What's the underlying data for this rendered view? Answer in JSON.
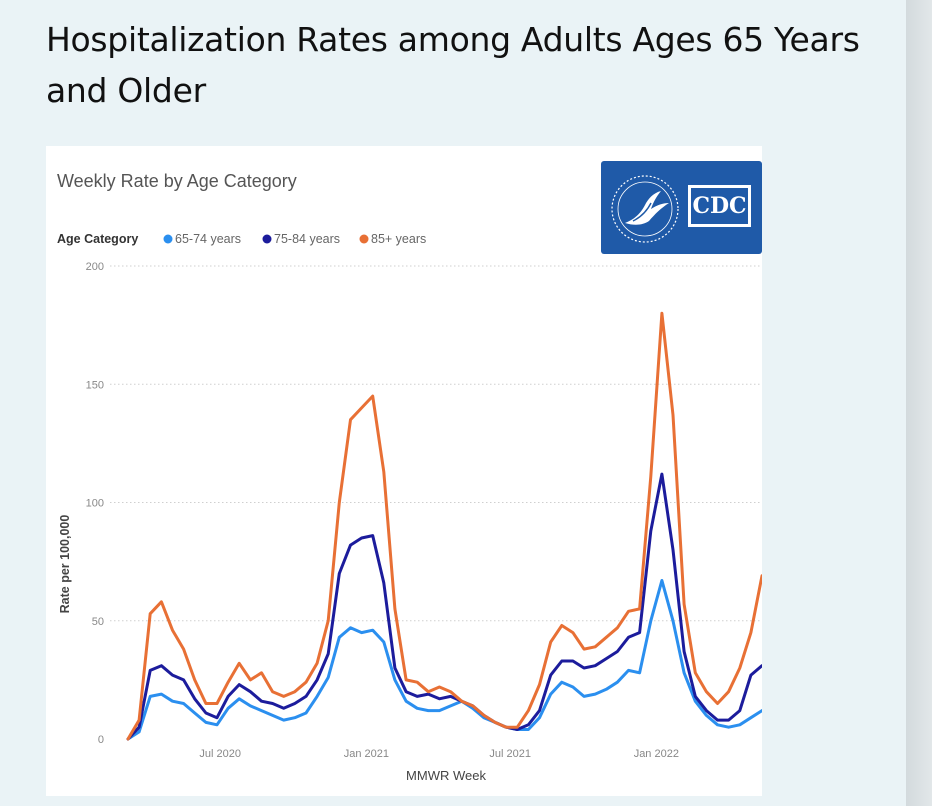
{
  "page": {
    "title": "Hospitalization Rates among Adults Ages 65 Years and Older"
  },
  "logo": {
    "text": "CDC",
    "icon": "hhs-eagle-icon",
    "color": "#1f5aa8"
  },
  "chart_data": {
    "type": "line",
    "title": "Weekly Rate by Age Category",
    "xlabel": "MMWR Week",
    "ylabel": "Rate per 100,000",
    "ylim": [
      0,
      200
    ],
    "yticks": [
      0,
      50,
      100,
      150,
      200
    ],
    "xticks": [
      "Jul 2020",
      "Jan 2021",
      "Jul 2021",
      "Jan 2022"
    ],
    "xtick_dates": [
      "2020-07-01",
      "2021-01-01",
      "2021-07-01",
      "2022-01-01"
    ],
    "grid": "horizontal-dotted",
    "legend": {
      "title": "Age Category",
      "placement": "top-left",
      "entries": [
        "65-74 years",
        "75-84 years",
        "85+ years"
      ]
    },
    "x": [
      "2020-03-07",
      "2020-03-21",
      "2020-04-04",
      "2020-04-18",
      "2020-05-02",
      "2020-05-16",
      "2020-05-30",
      "2020-06-13",
      "2020-06-27",
      "2020-07-11",
      "2020-07-25",
      "2020-08-08",
      "2020-08-22",
      "2020-09-05",
      "2020-09-19",
      "2020-10-03",
      "2020-10-17",
      "2020-10-31",
      "2020-11-14",
      "2020-11-28",
      "2020-12-12",
      "2020-12-26",
      "2021-01-09",
      "2021-01-23",
      "2021-02-06",
      "2021-02-20",
      "2021-03-06",
      "2021-03-20",
      "2021-04-03",
      "2021-04-17",
      "2021-05-01",
      "2021-05-15",
      "2021-05-29",
      "2021-06-12",
      "2021-06-26",
      "2021-07-10",
      "2021-07-24",
      "2021-08-07",
      "2021-08-21",
      "2021-09-04",
      "2021-09-18",
      "2021-10-02",
      "2021-10-16",
      "2021-10-30",
      "2021-11-13",
      "2021-11-27",
      "2021-12-11",
      "2021-12-25",
      "2022-01-08",
      "2022-01-22",
      "2022-02-05",
      "2022-02-19",
      "2022-03-05",
      "2022-03-19",
      "2022-04-02",
      "2022-04-16",
      "2022-04-30",
      "2022-05-14"
    ],
    "series": [
      {
        "name": "65-74 years",
        "color": "#2b8fef",
        "values": [
          0,
          3,
          18,
          19,
          16,
          15,
          11,
          7,
          6,
          13,
          17,
          14,
          12,
          10,
          8,
          9,
          11,
          18,
          26,
          43,
          47,
          45,
          46,
          41,
          25,
          16,
          13,
          12,
          12,
          14,
          16,
          13,
          9,
          7,
          5,
          4,
          4,
          9,
          19,
          24,
          22,
          18,
          19,
          21,
          24,
          29,
          28,
          50,
          67,
          50,
          28,
          16,
          10,
          6,
          5,
          6,
          9,
          12
        ],
        "values_note": ""
      },
      {
        "name": "75-84 years",
        "color": "#1c1c9c",
        "values": [
          0,
          5,
          29,
          31,
          27,
          25,
          17,
          11,
          9,
          18,
          23,
          20,
          16,
          15,
          13,
          15,
          18,
          25,
          36,
          70,
          82,
          85,
          86,
          66,
          30,
          20,
          18,
          19,
          17,
          18,
          16,
          14,
          10,
          7,
          5,
          4,
          6,
          12,
          27,
          33,
          33,
          30,
          31,
          34,
          37,
          43,
          45,
          88,
          112,
          80,
          37,
          18,
          12,
          8,
          8,
          12,
          27,
          31
        ]
      },
      {
        "name": "85+ years",
        "color": "#e87035",
        "values": [
          0,
          8,
          53,
          58,
          46,
          38,
          25,
          15,
          15,
          24,
          32,
          25,
          28,
          20,
          18,
          20,
          24,
          32,
          50,
          100,
          135,
          140,
          145,
          113,
          55,
          25,
          24,
          20,
          22,
          20,
          16,
          14,
          10,
          7,
          5,
          5,
          12,
          23,
          41,
          48,
          45,
          38,
          39,
          43,
          47,
          54,
          55,
          111,
          180,
          137,
          57,
          28,
          20,
          15,
          20,
          30,
          45,
          69
        ]
      }
    ]
  }
}
